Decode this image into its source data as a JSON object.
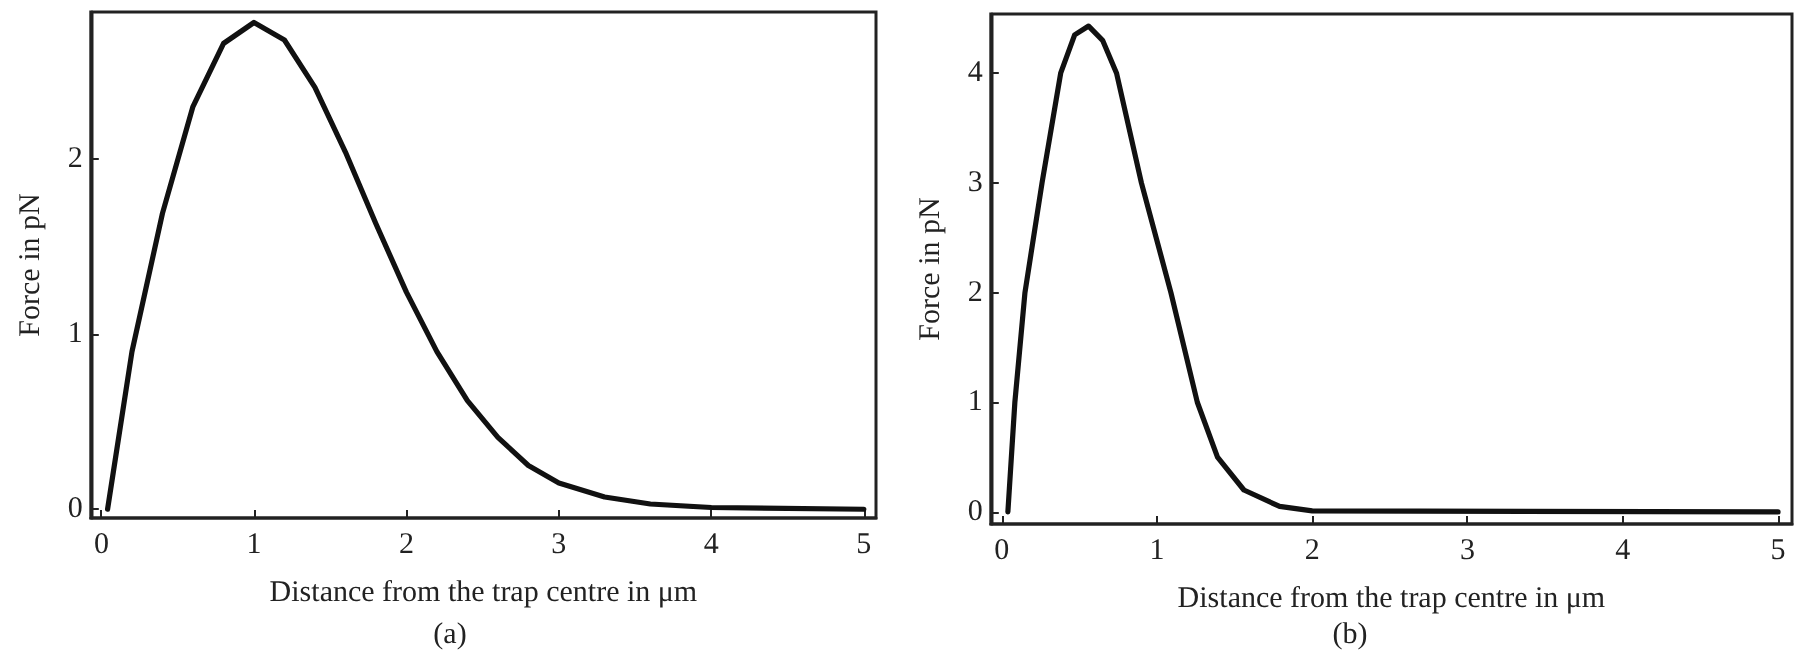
{
  "chart_data": [
    {
      "type": "line",
      "xlabel": "Distance from the trap centre in μm",
      "ylabel": "Force in pN",
      "annotations": [
        "(a)"
      ],
      "xlim": [
        -0.07,
        5.08
      ],
      "ylim": [
        -0.05,
        2.84
      ],
      "xticks": [
        0,
        1,
        2,
        3,
        4,
        5
      ],
      "yticks": [
        0,
        1,
        2
      ],
      "grid": false,
      "marker": "none",
      "line_style": "solid",
      "series": [
        {
          "color": "#111111",
          "x": [
            0.04,
            0.2,
            0.4,
            0.6,
            0.8,
            1.0,
            1.2,
            1.4,
            1.6,
            1.8,
            2.0,
            2.2,
            2.4,
            2.6,
            2.8,
            3.0,
            3.3,
            3.6,
            4.0,
            5.0
          ],
          "values": [
            0,
            0.9,
            1.69,
            2.3,
            2.66,
            2.78,
            2.68,
            2.41,
            2.04,
            1.63,
            1.24,
            0.9,
            0.62,
            0.41,
            0.25,
            0.15,
            0.07,
            0.03,
            0.01,
            0
          ]
        }
      ]
    },
    {
      "type": "line",
      "xlabel": "Distance from the trap centre in μm",
      "ylabel": "Force in pN",
      "annotations": [
        "(b)"
      ],
      "xlim": [
        -0.07,
        5.09
      ],
      "ylim": [
        -0.11,
        4.54
      ],
      "xticks": [
        0,
        1,
        2,
        3,
        4,
        5
      ],
      "yticks": [
        0,
        1,
        2,
        3,
        4
      ],
      "grid": false,
      "marker": "none",
      "line_style": "solid",
      "series": [
        {
          "color": "#111111",
          "x": [
            0.04,
            0.085,
            0.15,
            0.26,
            0.38,
            0.47,
            0.56,
            0.65,
            0.74,
            0.9,
            1.09,
            1.26,
            1.39,
            1.56,
            1.79,
            2.0,
            5.0
          ],
          "values": [
            0,
            1,
            2,
            3,
            4,
            4.35,
            4.43,
            4.3,
            4,
            3,
            2,
            1,
            0.5,
            0.2,
            0.05,
            0.01,
            0
          ]
        }
      ]
    }
  ]
}
